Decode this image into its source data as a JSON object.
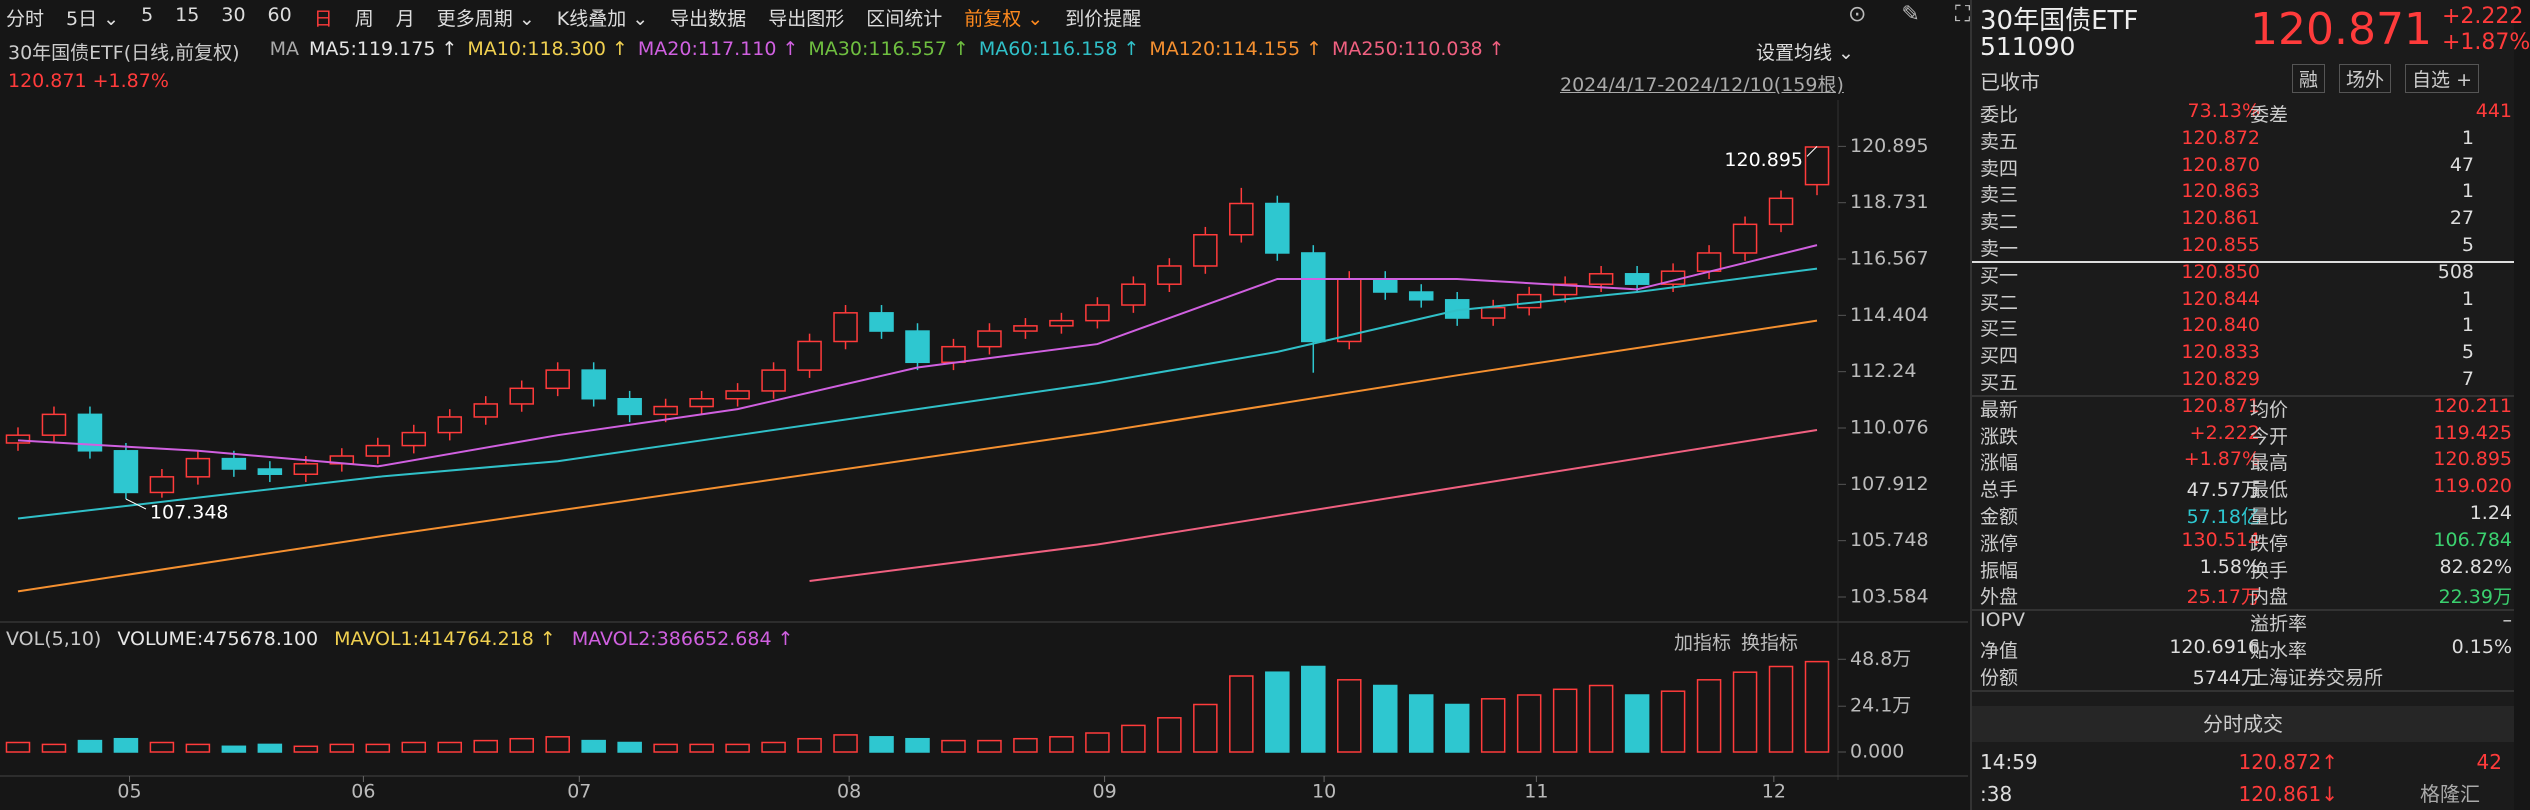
{
  "toolbar": [
    {
      "text": "分时"
    },
    {
      "text": "5日 ⌄"
    },
    {
      "text": "5"
    },
    {
      "text": "15"
    },
    {
      "text": "30"
    },
    {
      "text": "60"
    },
    {
      "text": "日",
      "color": "#ff3b3b"
    },
    {
      "text": "周"
    },
    {
      "text": "月"
    },
    {
      "text": "更多周期 ⌄"
    },
    {
      "text": "K线叠加 ⌄"
    },
    {
      "text": "导出数据"
    },
    {
      "text": "导出图形"
    },
    {
      "text": "区间统计"
    },
    {
      "text": "前复权 ⌄",
      "color": "#ff8a1e"
    },
    {
      "text": "到价提醒"
    }
  ],
  "legend": {
    "name": "30年国债ETF(日线,前复权)",
    "ma": "MA",
    "items": [
      {
        "text": "MA5:119.175 ↑",
        "color": "#e6e6e6"
      },
      {
        "text": "MA10:118.300 ↑",
        "color": "#f0d050"
      },
      {
        "text": "MA20:117.110 ↑",
        "color": "#d060e0"
      },
      {
        "text": "MA30:116.557 ↑",
        "color": "#6fbf40"
      },
      {
        "text": "MA60:116.158 ↑",
        "color": "#30c0c8"
      },
      {
        "text": "MA120:114.155 ↑",
        "color": "#f59030"
      },
      {
        "text": "MA250:110.038 ↑",
        "color": "#f06080"
      }
    ],
    "last": "120.871",
    "change": "+1.87%",
    "settings": "设置均线 ⌄",
    "range": "2024/4/17-2024/12/10(159根)"
  },
  "chart_data": [
    {
      "type": "candlestick",
      "candles": {
        "open": [
          109.5,
          109.8,
          110.6,
          109.2,
          107.6,
          108.2,
          108.9,
          108.5,
          108.3,
          108.7,
          109.0,
          109.4,
          109.9,
          110.5,
          111.0,
          111.6,
          112.3,
          111.2,
          110.6,
          110.9,
          111.2,
          111.5,
          112.3,
          113.4,
          114.5,
          113.8,
          112.6,
          113.2,
          113.8,
          114.0,
          114.2,
          114.8,
          115.6,
          116.3,
          117.5,
          118.7,
          116.8,
          113.4,
          115.8,
          115.3,
          115.0,
          114.3,
          114.7,
          115.2,
          115.6,
          116.0,
          115.6,
          116.1,
          116.8,
          117.9,
          119.425
        ],
        "close": [
          109.8,
          110.6,
          109.2,
          107.6,
          108.2,
          108.9,
          108.5,
          108.3,
          108.7,
          109.0,
          109.4,
          109.9,
          110.5,
          111.0,
          111.6,
          112.3,
          111.2,
          110.6,
          110.9,
          111.2,
          111.5,
          112.3,
          113.4,
          114.5,
          113.8,
          112.6,
          113.2,
          113.8,
          114.0,
          114.2,
          114.8,
          115.6,
          116.3,
          117.5,
          118.7,
          116.8,
          113.4,
          115.8,
          115.3,
          115.0,
          114.3,
          114.7,
          115.2,
          115.6,
          116.0,
          115.6,
          116.1,
          116.8,
          117.9,
          118.9,
          120.871
        ],
        "high": [
          110.1,
          110.9,
          110.9,
          109.5,
          108.5,
          109.2,
          109.2,
          108.8,
          109.0,
          109.3,
          109.7,
          110.2,
          110.8,
          111.3,
          111.9,
          112.6,
          112.6,
          111.5,
          111.2,
          111.5,
          111.8,
          112.6,
          113.7,
          114.8,
          114.8,
          114.1,
          113.5,
          114.1,
          114.3,
          114.5,
          115.1,
          115.9,
          116.6,
          117.8,
          119.3,
          119.0,
          117.1,
          116.1,
          116.1,
          115.6,
          115.3,
          115.0,
          115.5,
          115.9,
          116.3,
          116.3,
          116.4,
          117.1,
          118.2,
          119.2,
          120.895
        ],
        "low": [
          109.2,
          109.5,
          108.9,
          107.348,
          107.4,
          107.9,
          108.2,
          108.0,
          108.0,
          108.4,
          108.7,
          109.1,
          109.6,
          110.2,
          110.7,
          111.3,
          110.9,
          110.3,
          110.3,
          110.6,
          110.9,
          111.2,
          112.0,
          113.1,
          113.5,
          112.3,
          112.3,
          112.9,
          113.5,
          113.7,
          113.9,
          114.5,
          115.3,
          116.0,
          117.2,
          116.5,
          112.2,
          113.1,
          115.0,
          114.7,
          114.0,
          114.0,
          114.4,
          114.9,
          115.3,
          115.3,
          115.3,
          115.8,
          116.5,
          117.6,
          119.02
        ]
      },
      "up_color": "#ff3b3b",
      "down_color": "#2ec7d0",
      "series": [
        {
          "name": "MA20",
          "color": "#d060e0",
          "x": [
            0,
            5,
            10,
            15,
            20,
            25,
            30,
            35,
            40,
            45,
            50
          ],
          "values": [
            109.6,
            109.2,
            108.6,
            109.8,
            110.8,
            112.4,
            113.3,
            115.8,
            115.8,
            115.4,
            117.1
          ]
        },
        {
          "name": "MA60",
          "color": "#30c0c8",
          "x": [
            0,
            5,
            10,
            15,
            20,
            25,
            30,
            35,
            40,
            45,
            50
          ],
          "values": [
            106.6,
            107.4,
            108.2,
            108.8,
            109.8,
            110.8,
            111.8,
            113.0,
            114.6,
            115.3,
            116.2
          ]
        },
        {
          "name": "MA120",
          "color": "#f59030",
          "x": [
            0,
            10,
            20,
            30,
            40,
            50
          ],
          "values": [
            103.8,
            105.9,
            107.9,
            109.9,
            112.1,
            114.2
          ]
        },
        {
          "name": "MA250",
          "color": "#f06080",
          "x": [
            22,
            30,
            40,
            50
          ],
          "values": [
            104.2,
            105.6,
            107.8,
            110.0
          ]
        }
      ],
      "ylim": [
        102.7,
        122.1
      ],
      "yticks": [
        103.584,
        105.748,
        107.912,
        110.076,
        112.24,
        114.404,
        116.567,
        118.731,
        120.895
      ],
      "annotations": [
        {
          "text": "120.895",
          "index": 50,
          "value": 120.895
        },
        {
          "text": "107.348",
          "index": 3,
          "value": 107.348
        }
      ]
    },
    {
      "type": "bar",
      "legend": [
        "VOL(5,10)",
        "VOLUME:475678.100",
        "MAVOL1:414764.218 ↑",
        "MAVOL2:386652.684 ↑"
      ],
      "legend_colors": [
        "#c8c8c8",
        "#e6e6e6",
        "#f0d050",
        "#d060e0"
      ],
      "tools": [
        "加指标",
        "换指标"
      ],
      "values": [
        5,
        4,
        6,
        7,
        5,
        4,
        3,
        4,
        3,
        4,
        4,
        5,
        5,
        6,
        7,
        8,
        6,
        5,
        4,
        4,
        4,
        5,
        7,
        9,
        8,
        7,
        6,
        6,
        7,
        8,
        10,
        14,
        18,
        25,
        40,
        42,
        45,
        38,
        35,
        30,
        25,
        28,
        30,
        33,
        35,
        30,
        32,
        38,
        42,
        45,
        47.57
      ],
      "ylim": [
        0,
        60
      ],
      "yticks": [
        {
          "value": 0,
          "label": "0.000"
        },
        {
          "value": 24.1,
          "label": "24.1万"
        },
        {
          "value": 48.8,
          "label": "48.8万"
        }
      ],
      "xticks": [
        {
          "value": 3.1,
          "label": "05"
        },
        {
          "value": 9.6,
          "label": "06"
        },
        {
          "value": 15.6,
          "label": "07"
        },
        {
          "value": 23.1,
          "label": "08"
        },
        {
          "value": 30.2,
          "label": "09"
        },
        {
          "value": 36.3,
          "label": "10"
        },
        {
          "value": 42.2,
          "label": "11"
        },
        {
          "value": 48.8,
          "label": "12"
        }
      ]
    }
  ],
  "quote": {
    "name": "30年国债ETF",
    "code": "511090",
    "price": "120.871",
    "change": "+2.222",
    "pct": "+1.87%",
    "status": "已收市",
    "tags": [
      "融",
      "场外",
      "自选 +"
    ],
    "rows": [
      {
        "cells": [
          "委比",
          "73.13%",
          "委差",
          "441"
        ],
        "colors": [
          "#ccc",
          "#ff3b3b",
          "#ccc",
          "#ff3b3b"
        ]
      },
      {
        "cells": [
          "卖五",
          "120.872",
          "1"
        ],
        "colors": [
          "#ccc",
          "#ff3b3b",
          "#ddd"
        ]
      },
      {
        "cells": [
          "卖四",
          "120.870",
          "47"
        ],
        "colors": [
          "#ccc",
          "#ff3b3b",
          "#ddd"
        ]
      },
      {
        "cells": [
          "卖三",
          "120.863",
          "1"
        ],
        "colors": [
          "#ccc",
          "#ff3b3b",
          "#ddd"
        ]
      },
      {
        "cells": [
          "卖二",
          "120.861",
          "27"
        ],
        "colors": [
          "#ccc",
          "#ff3b3b",
          "#ddd"
        ]
      },
      {
        "cells": [
          "卖一",
          "120.855",
          "5"
        ],
        "colors": [
          "#ccc",
          "#ff3b3b",
          "#ddd"
        ]
      },
      {
        "cells": [
          "买一",
          "120.850",
          "508"
        ],
        "colors": [
          "#ccc",
          "#ff3b3b",
          "#ddd"
        ]
      },
      {
        "cells": [
          "买二",
          "120.844",
          "1"
        ],
        "colors": [
          "#ccc",
          "#ff3b3b",
          "#ddd"
        ]
      },
      {
        "cells": [
          "买三",
          "120.840",
          "1"
        ],
        "colors": [
          "#ccc",
          "#ff3b3b",
          "#ddd"
        ]
      },
      {
        "cells": [
          "买四",
          "120.833",
          "5"
        ],
        "colors": [
          "#ccc",
          "#ff3b3b",
          "#ddd"
        ]
      },
      {
        "cells": [
          "买五",
          "120.829",
          "7"
        ],
        "colors": [
          "#ccc",
          "#ff3b3b",
          "#ddd"
        ]
      },
      {
        "cells": [
          "最新",
          "120.871",
          "均价",
          "120.211"
        ],
        "colors": [
          "#ccc",
          "#ff3b3b",
          "#ccc",
          "#ff3b3b"
        ]
      },
      {
        "cells": [
          "涨跌",
          "+2.222",
          "今开",
          "119.425"
        ],
        "colors": [
          "#ccc",
          "#ff3b3b",
          "#ccc",
          "#ff3b3b"
        ]
      },
      {
        "cells": [
          "涨幅",
          "+1.87%",
          "最高",
          "120.895"
        ],
        "colors": [
          "#ccc",
          "#ff3b3b",
          "#ccc",
          "#ff3b3b"
        ]
      },
      {
        "cells": [
          "总手",
          "47.57万",
          "最低",
          "119.020"
        ],
        "colors": [
          "#ccc",
          "#ddd",
          "#ccc",
          "#ff3b3b"
        ]
      },
      {
        "cells": [
          "金额",
          "57.18亿",
          "量比",
          "1.24"
        ],
        "colors": [
          "#ccc",
          "#2ec7d0",
          "#ccc",
          "#ddd"
        ]
      },
      {
        "cells": [
          "涨停",
          "130.514",
          "跌停",
          "106.784"
        ],
        "colors": [
          "#ccc",
          "#ff3b3b",
          "#ccc",
          "#3bd16f"
        ]
      },
      {
        "cells": [
          "振幅",
          "1.58%",
          "换手",
          "82.82%"
        ],
        "colors": [
          "#ccc",
          "#ddd",
          "#ccc",
          "#ddd"
        ]
      },
      {
        "cells": [
          "外盘",
          "25.17万",
          "内盘",
          "22.39万"
        ],
        "colors": [
          "#ccc",
          "#ff3b3b",
          "#ccc",
          "#3bd16f"
        ]
      },
      {
        "cells": [
          "IOPV",
          "–",
          "溢折率",
          "–"
        ],
        "colors": [
          "#ccc",
          "#ddd",
          "#ccc",
          "#ddd"
        ]
      },
      {
        "cells": [
          "净值",
          "120.6916",
          "贴水率",
          "0.15%"
        ],
        "colors": [
          "#ccc",
          "#ddd",
          "#ccc",
          "#ddd"
        ]
      },
      {
        "cells": [
          "份额",
          "5744万",
          "上海证券交易所"
        ],
        "colors": [
          "#ccc",
          "#ddd",
          "#ccc"
        ]
      }
    ],
    "trades_title": "分时成交",
    "trades": [
      {
        "cells": [
          "14:59",
          "120.872↑",
          "42"
        ],
        "colors": [
          "#ddd",
          "#ff3b3b",
          "#ff3b3b"
        ]
      },
      {
        "cells": [
          ":38",
          "120.861↓"
        ],
        "colors": [
          "#ddd",
          "#ff3b3b"
        ]
      }
    ],
    "logo": "格隆汇"
  }
}
